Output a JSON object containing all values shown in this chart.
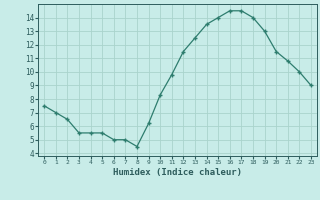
{
  "x": [
    0,
    1,
    2,
    3,
    4,
    5,
    6,
    7,
    8,
    9,
    10,
    11,
    12,
    13,
    14,
    15,
    16,
    17,
    18,
    19,
    20,
    21,
    22,
    23
  ],
  "y": [
    7.5,
    7.0,
    6.5,
    5.5,
    5.5,
    5.5,
    5.0,
    5.0,
    4.5,
    6.2,
    8.3,
    9.8,
    11.5,
    12.5,
    13.5,
    14.0,
    14.5,
    14.5,
    14.0,
    13.0,
    11.5,
    10.8,
    10.0,
    9.0
  ],
  "xlabel": "Humidex (Indice chaleur)",
  "ylim": [
    3.8,
    15.0
  ],
  "xlim": [
    -0.5,
    23.5
  ],
  "yticks": [
    4,
    5,
    6,
    7,
    8,
    9,
    10,
    11,
    12,
    13,
    14
  ],
  "xticks": [
    0,
    1,
    2,
    3,
    4,
    5,
    6,
    7,
    8,
    9,
    10,
    11,
    12,
    13,
    14,
    15,
    16,
    17,
    18,
    19,
    20,
    21,
    22,
    23
  ],
  "line_color": "#2e7d6e",
  "marker_color": "#2e7d6e",
  "bg_color": "#c8ece8",
  "grid_color": "#aad4cc",
  "tick_label_color": "#2e5d5d",
  "xlabel_color": "#2e5d5d"
}
